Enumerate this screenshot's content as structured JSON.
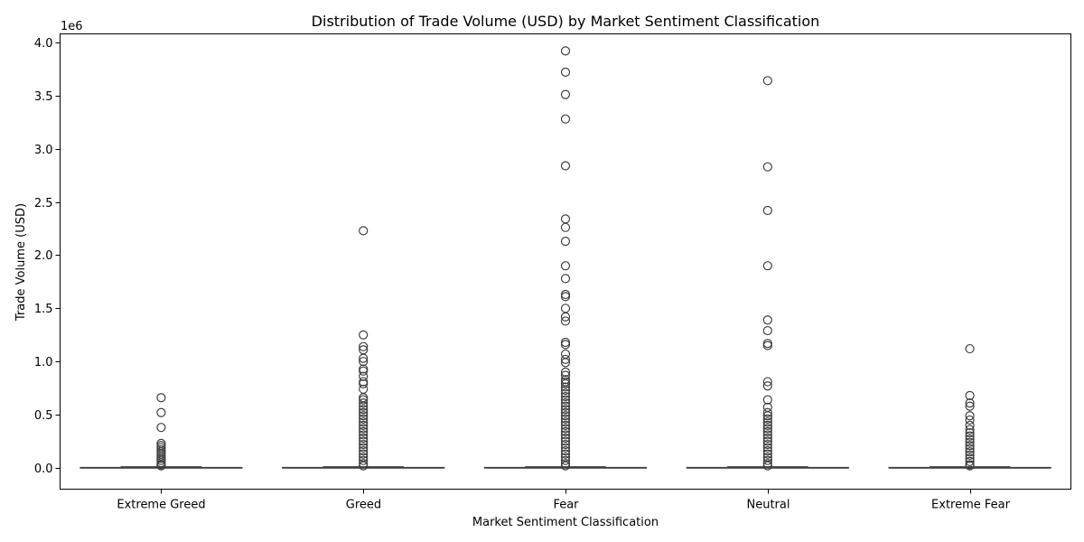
{
  "chart_data": {
    "type": "box",
    "title": "Distribution of Trade Volume (USD) by Market Sentiment Classification",
    "xlabel": "Market Sentiment Classification",
    "ylabel": "Trade Volume (USD)",
    "y_offset_label": "1e6",
    "ylim": [
      -0.2,
      4.08
    ],
    "y_scale_unit": 1000000,
    "yticks": [
      0.0,
      0.5,
      1.0,
      1.5,
      2.0,
      2.5,
      3.0,
      3.5,
      4.0
    ],
    "ytick_labels": [
      "0.0",
      "0.5",
      "1.0",
      "1.5",
      "2.0",
      "2.5",
      "3.0",
      "3.5",
      "4.0"
    ],
    "grid": false,
    "box_color": "#ffffff",
    "line_color": "#3f3f3f",
    "categories": [
      "Extreme Greed",
      "Greed",
      "Fear",
      "Neutral",
      "Extreme Fear"
    ],
    "boxes": [
      {
        "category": "Extreme Greed",
        "whisker_low": 0.0,
        "q1": 0.0,
        "median": 0.0,
        "q3": 0.004,
        "whisker_high": 0.01,
        "outliers": [
          0.66,
          0.52,
          0.38,
          0.23,
          0.21,
          0.19,
          0.17,
          0.15,
          0.13,
          0.11,
          0.09,
          0.07,
          0.05,
          0.03,
          0.02
        ]
      },
      {
        "category": "Greed",
        "whisker_low": 0.0,
        "q1": 0.0,
        "median": 0.0,
        "q3": 0.004,
        "whisker_high": 0.01,
        "outliers": [
          2.23,
          1.25,
          1.14,
          1.11,
          1.03,
          1.0,
          0.93,
          0.91,
          0.86,
          0.81,
          0.79,
          0.74,
          0.66,
          0.64,
          0.61,
          0.58,
          0.55,
          0.52,
          0.49,
          0.46,
          0.43,
          0.4,
          0.37,
          0.34,
          0.31,
          0.28,
          0.25,
          0.22,
          0.19,
          0.16,
          0.13,
          0.1,
          0.07,
          0.04,
          0.02
        ]
      },
      {
        "category": "Fear",
        "whisker_low": 0.0,
        "q1": 0.0,
        "median": 0.0,
        "q3": 0.004,
        "whisker_high": 0.01,
        "outliers": [
          3.92,
          3.72,
          3.51,
          3.28,
          2.84,
          2.34,
          2.26,
          2.13,
          1.9,
          1.78,
          1.63,
          1.61,
          1.5,
          1.42,
          1.38,
          1.18,
          1.16,
          1.07,
          1.02,
          0.99,
          0.9,
          0.87,
          0.83,
          0.81,
          0.79,
          0.76,
          0.73,
          0.7,
          0.67,
          0.64,
          0.61,
          0.58,
          0.55,
          0.52,
          0.49,
          0.46,
          0.43,
          0.4,
          0.37,
          0.34,
          0.31,
          0.28,
          0.25,
          0.22,
          0.19,
          0.16,
          0.13,
          0.1,
          0.07,
          0.04,
          0.02
        ]
      },
      {
        "category": "Neutral",
        "whisker_low": 0.0,
        "q1": 0.0,
        "median": 0.0,
        "q3": 0.004,
        "whisker_high": 0.01,
        "outliers": [
          3.64,
          2.83,
          2.42,
          1.9,
          1.39,
          1.29,
          1.17,
          1.15,
          0.81,
          0.77,
          0.64,
          0.57,
          0.52,
          0.49,
          0.46,
          0.43,
          0.4,
          0.37,
          0.34,
          0.31,
          0.28,
          0.25,
          0.22,
          0.19,
          0.16,
          0.13,
          0.1,
          0.07,
          0.04,
          0.02
        ]
      },
      {
        "category": "Extreme Fear",
        "whisker_low": 0.0,
        "q1": 0.0,
        "median": 0.0,
        "q3": 0.004,
        "whisker_high": 0.01,
        "outliers": [
          1.12,
          0.68,
          0.61,
          0.58,
          0.49,
          0.45,
          0.4,
          0.36,
          0.33,
          0.3,
          0.27,
          0.24,
          0.21,
          0.18,
          0.15,
          0.12,
          0.09,
          0.06,
          0.03,
          0.02
        ]
      }
    ]
  }
}
